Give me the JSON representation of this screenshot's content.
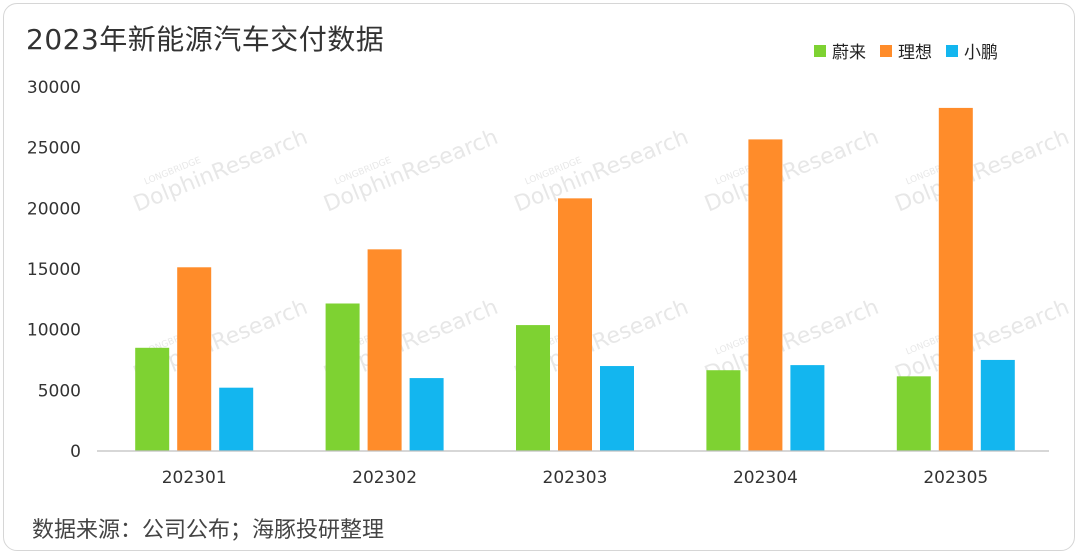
{
  "chart_data": {
    "type": "bar",
    "title": "2023年新能源汽车交付数据",
    "categories": [
      "202301",
      "202302",
      "202303",
      "202304",
      "202305"
    ],
    "series": [
      {
        "name": "蔚来",
        "color": "#7ed232",
        "values": [
          8506,
          12157,
          10378,
          6658,
          6155
        ]
      },
      {
        "name": "理想",
        "color": "#ff8c2a",
        "values": [
          15141,
          16620,
          20823,
          25681,
          28277
        ]
      },
      {
        "name": "小鹏",
        "color": "#13b6ef",
        "values": [
          5218,
          6010,
          7002,
          7079,
          7506
        ]
      }
    ],
    "ylim": [
      0,
      30000
    ],
    "yticks": [
      0,
      5000,
      10000,
      15000,
      20000,
      25000,
      30000
    ],
    "grid": false,
    "legend": "top-right",
    "xlabel": "",
    "ylabel": ""
  },
  "footer": {
    "source": "数据来源：公司公布；海豚投研整理"
  },
  "watermark": {
    "brand": "LONGBRIDGE",
    "name": "DolphinResearch"
  }
}
